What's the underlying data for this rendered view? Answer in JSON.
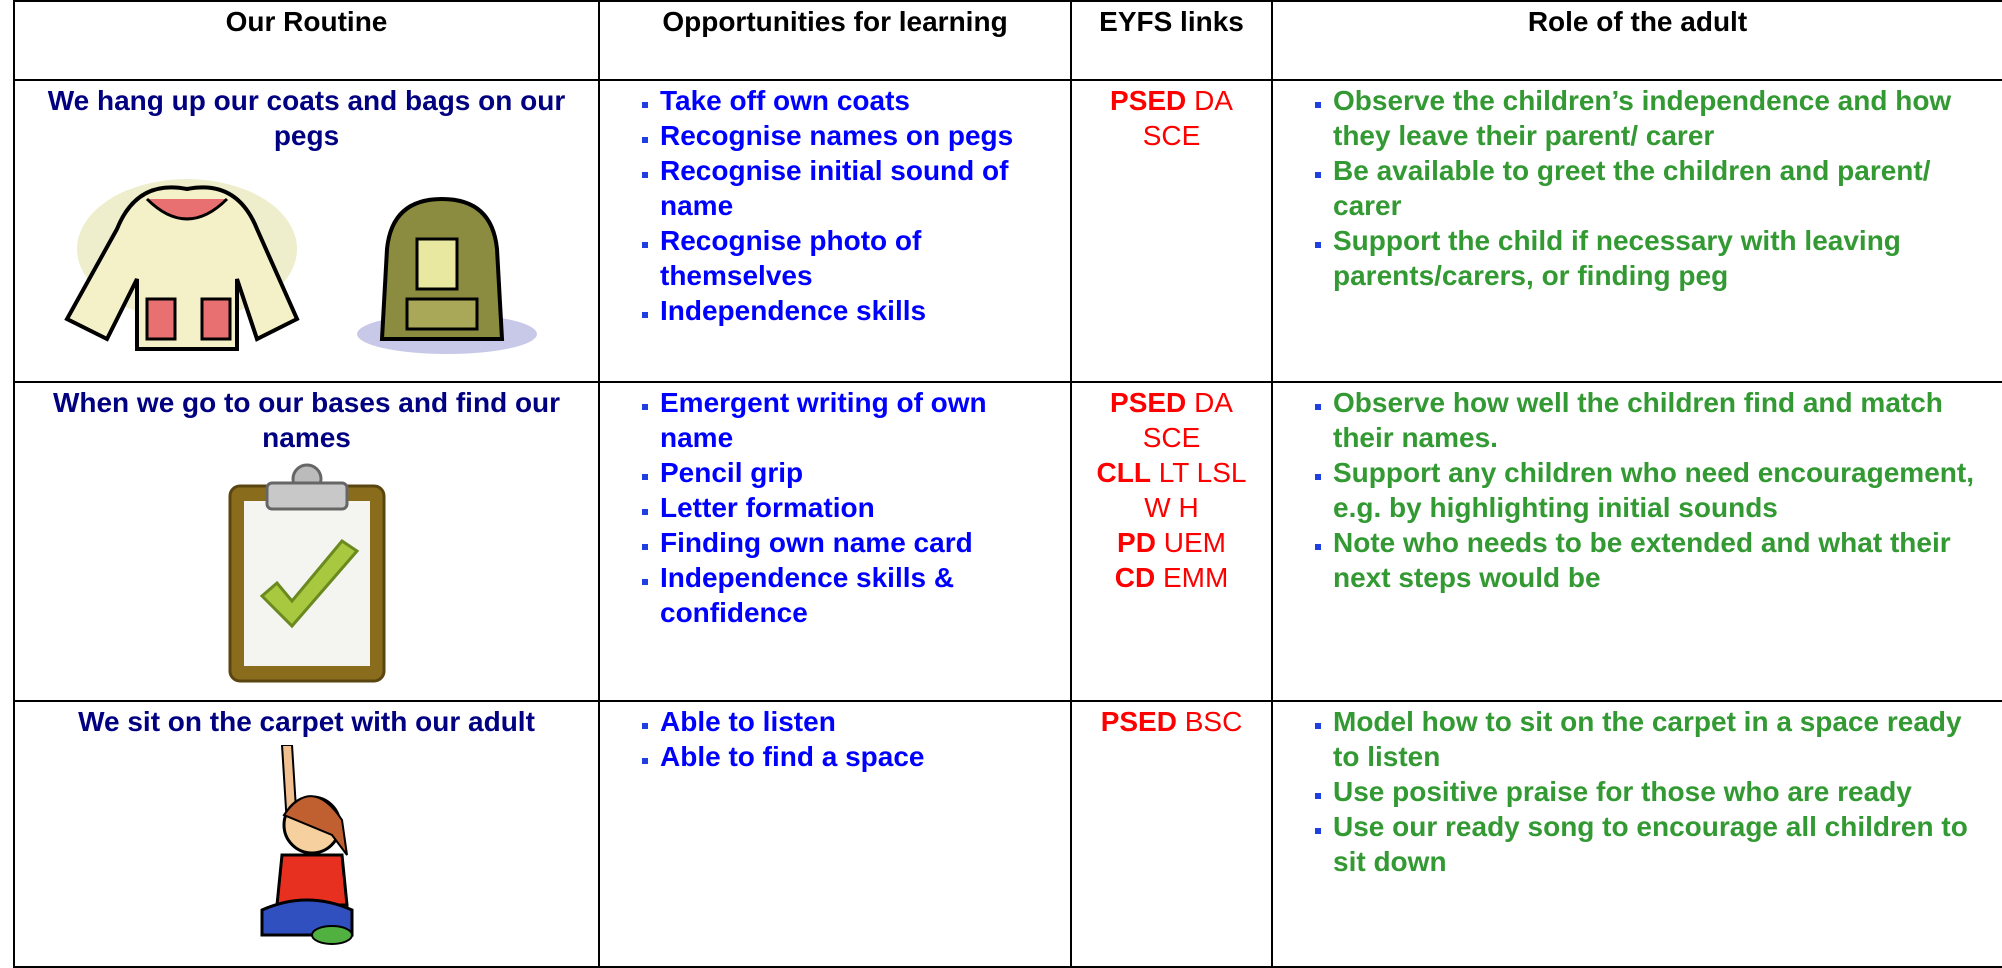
{
  "table": {
    "headers": [
      "Our Routine",
      "Opportunities for learning",
      "EYFS links",
      "Role of the adult"
    ],
    "rows": [
      {
        "routine": "We hang up our coats and bags on our pegs",
        "opportunities": [
          "Take off own coats",
          "Recognise names on pegs",
          "Recognise initial sound of name",
          "Recognise photo of themselves",
          "Independence skills"
        ],
        "eyfs": [
          {
            "code": "PSED",
            "areas": "DA SCE"
          }
        ],
        "role": [
          "Observe the children’s independence and how they leave their parent/ carer",
          "Be available to greet the children and parent/ carer",
          "Support the child if necessary with leaving parents/carers, or finding peg"
        ]
      },
      {
        "routine": "When we go to our bases and find our names",
        "opportunities": [
          "Emergent writing of own name",
          "Pencil grip",
          "Letter formation",
          "Finding own name card",
          "Independence skills & confidence"
        ],
        "eyfs": [
          {
            "code": "PSED",
            "areas": "DA SCE"
          },
          {
            "code": "CLL",
            "areas": "LT LSL W  H"
          },
          {
            "code": "PD",
            "areas": "UEM"
          },
          {
            "code": "CD",
            "areas": "EMM"
          }
        ],
        "role": [
          "Observe how well the children find and match their names.",
          "Support any children who need encouragement, e.g. by highlighting initial sounds",
          "Note who needs to be extended and what their next steps would be"
        ]
      },
      {
        "routine": "We sit on the carpet with our adult",
        "opportunities": [
          "Able to listen",
          "Able to find a space"
        ],
        "eyfs": [
          {
            "code": "PSED",
            "areas": "BSC"
          }
        ],
        "role": [
          "Model how to sit on the carpet in a space ready to listen",
          "Use positive praise for those who are ready",
          "Use our ready song to encourage all children to sit down"
        ]
      }
    ]
  }
}
